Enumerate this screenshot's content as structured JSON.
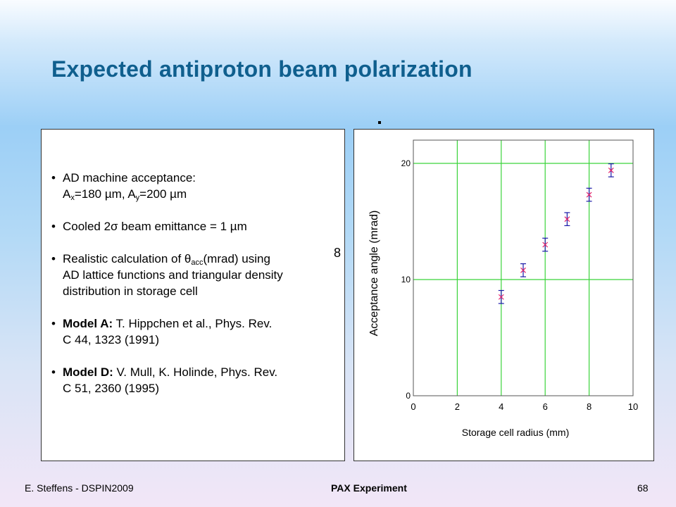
{
  "slide": {
    "title": "Expected antiproton beam polarization",
    "stray_label": "8",
    "footer": {
      "left": "E. Steffens - DSPIN2009",
      "center": "PAX Experiment",
      "page": "68"
    }
  },
  "bullets": [
    {
      "lines": [
        {
          "parts": [
            {
              "t": "AD machine acceptance:"
            }
          ]
        },
        {
          "parts": [
            {
              "t": "A"
            },
            {
              "t": "x",
              "sub": true
            },
            {
              "t": "=180 µm, A"
            },
            {
              "t": "y",
              "sub": true
            },
            {
              "t": "=200 µm"
            }
          ]
        }
      ]
    },
    {
      "lines": [
        {
          "parts": [
            {
              "t": "Cooled 2σ beam emittance = 1 µm"
            }
          ]
        }
      ]
    },
    {
      "lines": [
        {
          "parts": [
            {
              "t": "Realistic calculation of θ"
            },
            {
              "t": "acc",
              "sub": true
            },
            {
              "t": "(mrad) using"
            }
          ]
        },
        {
          "parts": [
            {
              "t": "AD lattice functions and triangular density"
            }
          ]
        },
        {
          "parts": [
            {
              "t": "distribution in storage cell"
            }
          ]
        }
      ]
    },
    {
      "lines": [
        {
          "parts": [
            {
              "t": "Model A:",
              "bold": true
            },
            {
              "t": " T. Hippchen et al., Phys. Rev."
            }
          ]
        },
        {
          "parts": [
            {
              "t": "C 44, 1323 (1991)"
            }
          ]
        }
      ]
    },
    {
      "lines": [
        {
          "parts": [
            {
              "t": "Model D:",
              "bold": true
            },
            {
              "t": " V. Mull, K. Holinde, Phys. Rev."
            }
          ]
        },
        {
          "parts": [
            {
              "t": "C 51, 2360 (1995)"
            }
          ]
        }
      ]
    }
  ],
  "chart_data": {
    "type": "scatter",
    "xlabel": "Storage cell radius (mm)",
    "ylabel": "Acceptance angle (mrad)",
    "xlim": [
      0,
      10
    ],
    "ylim": [
      0,
      20
    ],
    "xticks": [
      "0",
      "2",
      "4",
      "6",
      "8",
      "10"
    ],
    "yticks": [
      "0",
      "10",
      "20"
    ],
    "grid": true,
    "colors": {
      "grid": "#3bd43b",
      "error_bar": "#1a1aa8",
      "marker": "#e0206c"
    },
    "series": [
      {
        "x": [
          4,
          5,
          6,
          7,
          8,
          9
        ],
        "y": [
          8.5,
          10.8,
          13.0,
          15.2,
          17.3,
          19.4
        ],
        "err": [
          0.5,
          0.5,
          0.5,
          0.5,
          0.5,
          0.5
        ]
      }
    ]
  }
}
